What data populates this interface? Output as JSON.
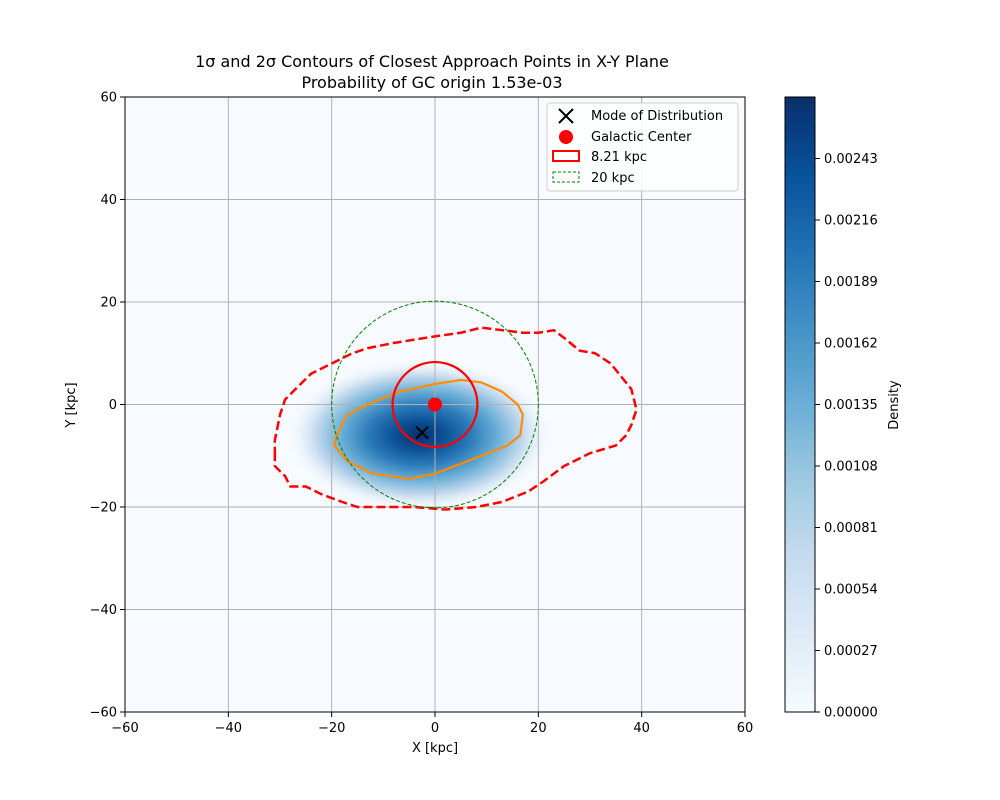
{
  "chart_data": {
    "type": "heatmap",
    "title": "1σ and 2σ Contours of Closest Approach Points in X-Y Plane",
    "subtitle": "Probability of GC origin 1.53e-03",
    "xlabel": "X [kpc]",
    "ylabel": "Y [kpc]",
    "xlim": [
      -60,
      60
    ],
    "ylim": [
      -60,
      60
    ],
    "xticks": [
      -60,
      -40,
      -20,
      0,
      20,
      40,
      60
    ],
    "yticks": [
      -60,
      -40,
      -20,
      0,
      20,
      40,
      60
    ],
    "xtick_labels": [
      "−60",
      "−40",
      "−20",
      "0",
      "20",
      "40",
      "60"
    ],
    "ytick_labels": [
      "−60",
      "−40",
      "−20",
      "0",
      "20",
      "40",
      "60"
    ],
    "grid": true,
    "colormap": "Blues",
    "density_peak": {
      "x": -3,
      "y": -6,
      "max": 0.0027
    },
    "colorbar": {
      "label": "Density",
      "range": [
        0,
        0.0027
      ],
      "ticks": [
        0.0,
        0.00027,
        0.00054,
        0.00081,
        0.00108,
        0.00135,
        0.00162,
        0.00189,
        0.00216,
        0.00243
      ],
      "tick_labels": [
        "0.00000",
        "0.00027",
        "0.00054",
        "0.00081",
        "0.00108",
        "0.00135",
        "0.00162",
        "0.00189",
        "0.00216",
        "0.00243"
      ]
    },
    "mode": {
      "x": -2.5,
      "y": -5.5
    },
    "galactic_center": {
      "x": 0,
      "y": 0
    },
    "circles": [
      {
        "name": "8.21 kpc",
        "r": 8.21,
        "color": "#ff0000",
        "style": "solid"
      },
      {
        "name": "20 kpc",
        "r": 20,
        "color": "#008000",
        "style": "dashed"
      }
    ],
    "contours": [
      {
        "name": "1σ",
        "color": "#ff8c00",
        "style": "solid",
        "points": [
          [
            -19,
            -6
          ],
          [
            -17,
            -2
          ],
          [
            -13,
            0
          ],
          [
            -7,
            2.5
          ],
          [
            0,
            4
          ],
          [
            5,
            4.8
          ],
          [
            9,
            4.3
          ],
          [
            13,
            2.5
          ],
          [
            16,
            0
          ],
          [
            17,
            -2
          ],
          [
            16.5,
            -6
          ],
          [
            14,
            -8
          ],
          [
            9,
            -10
          ],
          [
            0,
            -13.5
          ],
          [
            -5,
            -14.5
          ],
          [
            -12,
            -13.5
          ],
          [
            -17,
            -11
          ],
          [
            -19.5,
            -8
          ]
        ]
      },
      {
        "name": "2σ",
        "color": "#ff0000",
        "style": "dashed",
        "points": [
          [
            -31,
            -10
          ],
          [
            -31,
            -7
          ],
          [
            -30,
            -2
          ],
          [
            -29,
            1
          ],
          [
            -26,
            4
          ],
          [
            -24,
            6
          ],
          [
            -20,
            8
          ],
          [
            -16,
            10
          ],
          [
            -13,
            11
          ],
          [
            -8,
            12
          ],
          [
            0,
            13.3
          ],
          [
            5,
            14
          ],
          [
            9,
            15
          ],
          [
            13,
            14.5
          ],
          [
            17,
            14
          ],
          [
            20,
            14
          ],
          [
            23,
            14.5
          ],
          [
            25,
            13
          ],
          [
            28,
            10.5
          ],
          [
            31,
            10
          ],
          [
            34,
            8
          ],
          [
            36,
            5.5
          ],
          [
            38,
            3
          ],
          [
            39,
            -1
          ],
          [
            38,
            -4
          ],
          [
            37,
            -6
          ],
          [
            35,
            -8
          ],
          [
            30,
            -9.5
          ],
          [
            25,
            -12
          ],
          [
            21,
            -15
          ],
          [
            18,
            -17
          ],
          [
            13,
            -19
          ],
          [
            8,
            -20
          ],
          [
            2,
            -20.5
          ],
          [
            -4,
            -20
          ],
          [
            -10,
            -20
          ],
          [
            -15,
            -20
          ],
          [
            -18,
            -19
          ],
          [
            -22,
            -17.5
          ],
          [
            -25,
            -16
          ],
          [
            -28,
            -16
          ],
          [
            -29,
            -14
          ],
          [
            -31,
            -12
          ]
        ]
      }
    ],
    "legend": {
      "placement": "upper right",
      "entries": [
        {
          "label": "Mode of Distribution",
          "marker": "x",
          "color": "#000000"
        },
        {
          "label": "Galactic Center",
          "marker": "circle",
          "color": "#ff0000"
        },
        {
          "label": "8.21 kpc",
          "marker": "patch",
          "color": "#ff0000",
          "style": "solid"
        },
        {
          "label": "20 kpc",
          "marker": "patch",
          "color": "#008000",
          "style": "dashed"
        }
      ]
    }
  }
}
